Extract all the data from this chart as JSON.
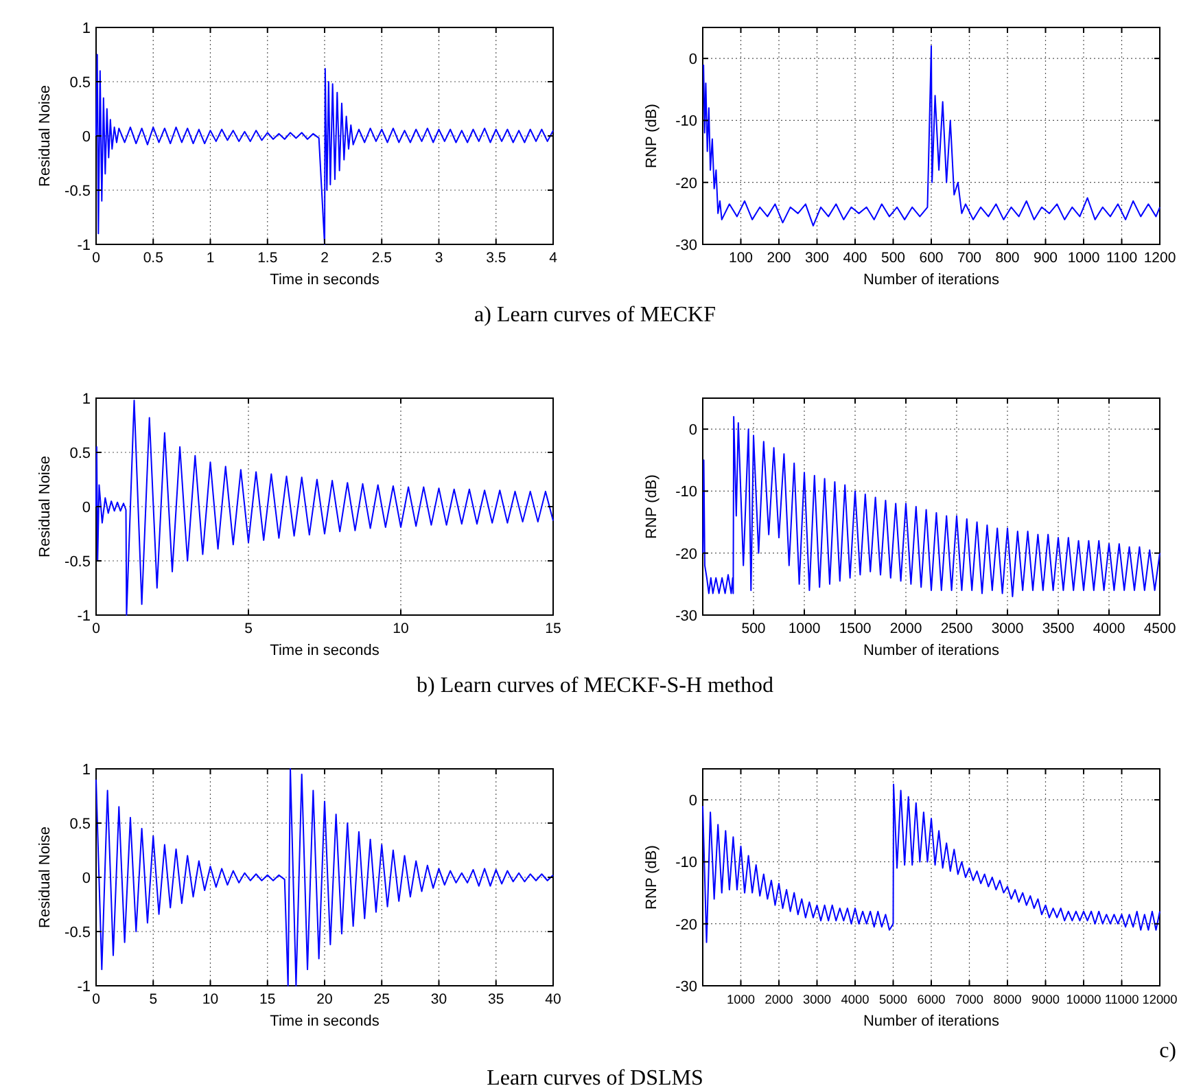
{
  "chart_data": [
    {
      "type": "line",
      "xlabel": "Time in seconds",
      "ylabel": "Residual Noise",
      "xlim": [
        0,
        4
      ],
      "ylim": [
        -1,
        1
      ],
      "xticks": [
        0,
        0.5,
        1,
        1.5,
        2,
        2.5,
        3,
        3.5,
        4
      ],
      "yticks": [
        -1,
        -0.5,
        0,
        0.5,
        1
      ],
      "grid": true,
      "color": "#0000ff",
      "x": [
        0,
        0.01,
        0.02,
        0.035,
        0.05,
        0.065,
        0.08,
        0.095,
        0.11,
        0.125,
        0.14,
        0.16,
        0.18,
        0.2,
        0.25,
        0.3,
        0.35,
        0.4,
        0.45,
        0.5,
        0.55,
        0.6,
        0.65,
        0.7,
        0.75,
        0.8,
        0.85,
        0.9,
        0.95,
        1,
        1.05,
        1.1,
        1.15,
        1.2,
        1.25,
        1.3,
        1.35,
        1.4,
        1.45,
        1.5,
        1.55,
        1.6,
        1.65,
        1.7,
        1.75,
        1.8,
        1.85,
        1.9,
        1.95,
        2,
        2.005,
        2.02,
        2.035,
        2.05,
        2.07,
        2.09,
        2.11,
        2.13,
        2.15,
        2.17,
        2.19,
        2.21,
        2.23,
        2.25,
        2.3,
        2.35,
        2.4,
        2.45,
        2.5,
        2.55,
        2.6,
        2.65,
        2.7,
        2.75,
        2.8,
        2.85,
        2.9,
        2.95,
        3,
        3.05,
        3.1,
        3.15,
        3.2,
        3.25,
        3.3,
        3.35,
        3.4,
        3.45,
        3.5,
        3.55,
        3.6,
        3.65,
        3.7,
        3.75,
        3.8,
        3.85,
        3.9,
        3.95,
        4
      ],
      "values": [
        0,
        0.75,
        -0.9,
        0.6,
        -0.6,
        0.35,
        -0.35,
        0.25,
        -0.2,
        0.15,
        -0.12,
        0.08,
        -0.06,
        0.07,
        -0.06,
        0.08,
        -0.07,
        0.07,
        -0.08,
        0.08,
        -0.06,
        0.07,
        -0.07,
        0.08,
        -0.06,
        0.07,
        -0.07,
        0.06,
        -0.07,
        0.05,
        -0.05,
        0.06,
        -0.04,
        0.05,
        -0.05,
        0.04,
        -0.05,
        0.05,
        -0.04,
        0.03,
        -0.03,
        0.02,
        -0.03,
        0.03,
        -0.02,
        0.03,
        -0.03,
        0.02,
        -0.02,
        -1,
        0.62,
        -0.5,
        0.5,
        -0.45,
        0.48,
        -0.4,
        0.4,
        -0.32,
        0.3,
        -0.22,
        0.18,
        -0.12,
        0.1,
        -0.08,
        0.06,
        -0.06,
        0.07,
        -0.05,
        0.06,
        -0.06,
        0.07,
        -0.06,
        0.05,
        -0.06,
        0.06,
        -0.05,
        0.07,
        -0.06,
        0.06,
        -0.05,
        0.06,
        -0.06,
        0.05,
        -0.06,
        0.06,
        -0.05,
        0.07,
        -0.06,
        0.06,
        -0.05,
        0.06,
        -0.06,
        0.05,
        -0.06,
        0.06,
        -0.05,
        0.06,
        -0.05,
        0.05
      ]
    },
    {
      "type": "line",
      "xlabel": "Number of iterations",
      "ylabel": "RNP (dB)",
      "xlim": [
        0,
        1200
      ],
      "ylim": [
        -30,
        5
      ],
      "xticks": [
        100,
        200,
        300,
        400,
        500,
        600,
        700,
        800,
        900,
        1000,
        1100,
        1200
      ],
      "yticks": [
        -30,
        -20,
        -10,
        0
      ],
      "grid": true,
      "color": "#0000ff",
      "annotations": [
        "a) Learn curves of MECKF"
      ],
      "x": [
        2,
        5,
        8,
        12,
        16,
        20,
        25,
        30,
        35,
        40,
        45,
        50,
        70,
        90,
        110,
        130,
        150,
        170,
        190,
        210,
        230,
        250,
        270,
        290,
        310,
        330,
        350,
        370,
        390,
        410,
        430,
        450,
        470,
        490,
        510,
        530,
        550,
        570,
        590,
        600,
        602,
        610,
        620,
        630,
        640,
        650,
        660,
        670,
        680,
        690,
        710,
        730,
        750,
        770,
        790,
        810,
        830,
        850,
        870,
        890,
        910,
        930,
        950,
        970,
        990,
        1010,
        1030,
        1050,
        1070,
        1090,
        1110,
        1130,
        1150,
        1170,
        1190,
        1200
      ],
      "values": [
        -1,
        -12,
        -4,
        -15,
        -8,
        -18,
        -13,
        -21,
        -18,
        -25,
        -23,
        -26,
        -23.5,
        -25.5,
        -23,
        -26,
        -24,
        -25.5,
        -23.5,
        -26.5,
        -24,
        -25,
        -23.5,
        -27,
        -24,
        -25.5,
        -23.5,
        -26,
        -24,
        -25,
        -24,
        -26,
        -23.5,
        -25.5,
        -24,
        -26,
        -24,
        -25.5,
        -24,
        2,
        -20,
        -6,
        -18,
        -7,
        -20,
        -10,
        -22,
        -20,
        -25,
        -23.5,
        -26,
        -24,
        -25.5,
        -23.5,
        -26,
        -24,
        -25.5,
        -23,
        -26,
        -24,
        -25,
        -23.5,
        -26,
        -24,
        -25.5,
        -22.5,
        -26,
        -24,
        -25.5,
        -23.5,
        -26,
        -23,
        -25.5,
        -23.5,
        -25.5,
        -24
      ]
    },
    {
      "type": "line",
      "xlabel": "Time in seconds",
      "ylabel": "Residual Noise",
      "xlim": [
        0,
        15
      ],
      "ylim": [
        -1,
        1
      ],
      "xticks": [
        0,
        5,
        10,
        15
      ],
      "yticks": [
        -1,
        -0.5,
        0,
        0.5,
        1
      ],
      "grid": true,
      "color": "#0000ff",
      "x": [
        0,
        0.02,
        0.05,
        0.1,
        0.2,
        0.3,
        0.4,
        0.5,
        0.6,
        0.7,
        0.8,
        0.9,
        0.98,
        1,
        1.25,
        1.5,
        1.75,
        2,
        2.25,
        2.5,
        2.75,
        3,
        3.25,
        3.5,
        3.75,
        4,
        4.25,
        4.5,
        4.75,
        5,
        5.25,
        5.5,
        5.75,
        6,
        6.25,
        6.5,
        6.75,
        7,
        7.25,
        7.5,
        7.75,
        8,
        8.25,
        8.5,
        8.75,
        9,
        9.25,
        9.5,
        9.75,
        10,
        10.25,
        10.5,
        10.75,
        11,
        11.25,
        11.5,
        11.75,
        12,
        12.25,
        12.5,
        12.75,
        13,
        13.25,
        13.5,
        13.75,
        14,
        14.25,
        14.5,
        14.75,
        15
      ],
      "values": [
        0,
        0.55,
        -0.5,
        0.2,
        -0.15,
        0.08,
        -0.06,
        0.05,
        -0.04,
        0.04,
        -0.04,
        0.03,
        -0.03,
        -1,
        0.98,
        -0.9,
        0.82,
        -0.75,
        0.68,
        -0.6,
        0.55,
        -0.5,
        0.47,
        -0.44,
        0.41,
        -0.39,
        0.37,
        -0.35,
        0.34,
        -0.33,
        0.32,
        -0.31,
        0.3,
        -0.29,
        0.28,
        -0.27,
        0.27,
        -0.26,
        0.25,
        -0.25,
        0.24,
        -0.23,
        0.22,
        -0.22,
        0.21,
        -0.2,
        0.2,
        -0.19,
        0.19,
        -0.19,
        0.18,
        -0.18,
        0.18,
        -0.17,
        0.17,
        -0.17,
        0.16,
        -0.16,
        0.16,
        -0.16,
        0.15,
        -0.15,
        0.15,
        -0.15,
        0.14,
        -0.14,
        0.14,
        -0.14,
        0.14,
        -0.13
      ]
    },
    {
      "type": "line",
      "xlabel": "Number of iterations",
      "ylabel": "RNP (dB)",
      "xlim": [
        0,
        4500
      ],
      "ylim": [
        -30,
        5
      ],
      "xticks": [
        500,
        1000,
        1500,
        2000,
        2500,
        3000,
        3500,
        4000,
        4500
      ],
      "yticks": [
        -30,
        -20,
        -10,
        0
      ],
      "grid": true,
      "color": "#0000ff",
      "annotations": [
        "b) Learn curves of MECKF-S-H method"
      ],
      "x": [
        2,
        10,
        20,
        40,
        60,
        80,
        100,
        130,
        160,
        190,
        220,
        250,
        280,
        295,
        300,
        305,
        330,
        350,
        400,
        450,
        475,
        500,
        550,
        600,
        650,
        700,
        750,
        800,
        850,
        900,
        950,
        1000,
        1050,
        1100,
        1150,
        1200,
        1250,
        1300,
        1350,
        1400,
        1450,
        1500,
        1550,
        1600,
        1650,
        1700,
        1750,
        1800,
        1850,
        1900,
        1950,
        2000,
        2050,
        2100,
        2150,
        2200,
        2250,
        2300,
        2350,
        2400,
        2450,
        2500,
        2550,
        2600,
        2650,
        2700,
        2750,
        2800,
        2850,
        2900,
        2950,
        3000,
        3050,
        3100,
        3150,
        3200,
        3250,
        3300,
        3350,
        3400,
        3450,
        3500,
        3550,
        3600,
        3650,
        3700,
        3750,
        3800,
        3850,
        3900,
        3950,
        4000,
        4050,
        4100,
        4150,
        4200,
        4250,
        4300,
        4350,
        4400,
        4450,
        4500
      ],
      "values": [
        -20,
        -5,
        -22,
        -24,
        -26.5,
        -24,
        -26.5,
        -24,
        -26.5,
        -24,
        -26.5,
        -23.5,
        -26.5,
        -24,
        -26.5,
        2,
        -14,
        1,
        -22,
        0,
        -26,
        -1,
        -20,
        -2,
        -17,
        -3,
        -17.5,
        -4,
        -22,
        -5.5,
        -25,
        -7,
        -26,
        -7.5,
        -25.5,
        -8,
        -25,
        -8.5,
        -24.5,
        -9,
        -24,
        -10,
        -23.5,
        -10.5,
        -23,
        -11,
        -23.5,
        -11.5,
        -24,
        -12,
        -24.5,
        -12,
        -25,
        -12.5,
        -25.5,
        -13,
        -26,
        -13.5,
        -26,
        -14,
        -26,
        -14,
        -26,
        -14.5,
        -26,
        -15,
        -26.5,
        -15.5,
        -26,
        -16,
        -26.5,
        -16,
        -27,
        -16.5,
        -26,
        -16.5,
        -26,
        -17,
        -26,
        -17,
        -26,
        -17.5,
        -26,
        -17.5,
        -26,
        -18,
        -26,
        -18,
        -26,
        -18,
        -26,
        -18.5,
        -26,
        -18.5,
        -26,
        -19,
        -26,
        -19,
        -26,
        -19.5,
        -26,
        -20
      ]
    },
    {
      "type": "line",
      "xlabel": "Time in seconds",
      "ylabel": "Residual Noise",
      "xlim": [
        0,
        40
      ],
      "ylim": [
        -1,
        1
      ],
      "xticks": [
        0,
        5,
        10,
        15,
        20,
        25,
        30,
        35,
        40
      ],
      "yticks": [
        -1,
        -0.5,
        0,
        0.5,
        1
      ],
      "grid": true,
      "color": "#0000ff",
      "x": [
        0,
        0.5,
        1,
        1.5,
        2,
        2.5,
        3,
        3.5,
        4,
        4.5,
        5,
        5.5,
        6,
        6.5,
        7,
        7.5,
        8,
        8.5,
        9,
        9.5,
        10,
        10.5,
        11,
        11.5,
        12,
        12.5,
        13,
        13.5,
        14,
        14.5,
        15,
        15.5,
        16,
        16.5,
        16.8,
        17,
        17.5,
        18,
        18.5,
        19,
        19.5,
        20,
        20.5,
        21,
        21.5,
        22,
        22.5,
        23,
        23.5,
        24,
        24.5,
        25,
        25.5,
        26,
        26.5,
        27,
        27.5,
        28,
        28.5,
        29,
        29.5,
        30,
        30.5,
        31,
        31.5,
        32,
        32.5,
        33,
        33.5,
        34,
        34.5,
        35,
        35.5,
        36,
        36.5,
        37,
        37.5,
        38,
        38.5,
        39,
        39.5,
        40
      ],
      "values": [
        0.9,
        -0.85,
        0.8,
        -0.72,
        0.65,
        -0.6,
        0.55,
        -0.5,
        0.45,
        -0.42,
        0.38,
        -0.34,
        0.3,
        -0.28,
        0.26,
        -0.24,
        0.2,
        -0.18,
        0.15,
        -0.12,
        0.1,
        -0.09,
        0.08,
        -0.07,
        0.06,
        -0.05,
        0.04,
        -0.03,
        0.03,
        -0.03,
        0.02,
        -0.03,
        0.02,
        -0.02,
        -1,
        1,
        -1,
        0.95,
        -0.85,
        0.8,
        -0.75,
        0.7,
        -0.62,
        0.58,
        -0.52,
        0.5,
        -0.45,
        0.42,
        -0.38,
        0.35,
        -0.32,
        0.3,
        -0.27,
        0.25,
        -0.22,
        0.2,
        -0.18,
        0.15,
        -0.13,
        0.11,
        -0.1,
        0.08,
        -0.07,
        0.06,
        -0.05,
        0.04,
        -0.05,
        0.07,
        -0.08,
        0.08,
        -0.08,
        0.07,
        -0.06,
        0.06,
        -0.04,
        0.04,
        -0.04,
        0.03,
        -0.03,
        0.03,
        -0.03,
        0.02
      ]
    },
    {
      "type": "line",
      "xlabel": "Number of iterations",
      "ylabel": "RNP (dB)",
      "xlim": [
        0,
        12000
      ],
      "ylim": [
        -30,
        5
      ],
      "xticks": [
        1000,
        2000,
        3000,
        4000,
        5000,
        6000,
        7000,
        8000,
        9000,
        10000,
        11000,
        12000
      ],
      "yticks": [
        -30,
        -20,
        -10,
        0
      ],
      "grid": true,
      "color": "#0000ff",
      "annotations": [
        "c)",
        "Learn curves of DSLMS"
      ],
      "x": [
        0,
        100,
        200,
        300,
        400,
        500,
        600,
        700,
        800,
        900,
        1000,
        1100,
        1200,
        1300,
        1400,
        1500,
        1600,
        1700,
        1800,
        1900,
        2000,
        2100,
        2200,
        2300,
        2400,
        2500,
        2600,
        2700,
        2800,
        2900,
        3000,
        3100,
        3200,
        3300,
        3400,
        3500,
        3600,
        3700,
        3800,
        3900,
        4000,
        4100,
        4200,
        4300,
        4400,
        4500,
        4600,
        4700,
        4800,
        4900,
        5000,
        5010,
        5100,
        5200,
        5300,
        5400,
        5500,
        5600,
        5700,
        5800,
        5900,
        6000,
        6100,
        6200,
        6300,
        6400,
        6500,
        6600,
        6700,
        6800,
        6900,
        7000,
        7100,
        7200,
        7300,
        7400,
        7500,
        7600,
        7700,
        7800,
        7900,
        8000,
        8100,
        8200,
        8300,
        8400,
        8500,
        8600,
        8700,
        8800,
        8900,
        9000,
        9100,
        9200,
        9300,
        9400,
        9500,
        9600,
        9700,
        9800,
        9900,
        10000,
        10100,
        10200,
        10300,
        10400,
        10500,
        10600,
        10700,
        10800,
        10900,
        11000,
        11100,
        11200,
        11300,
        11400,
        11500,
        11600,
        11700,
        11800,
        11900,
        12000
      ],
      "values": [
        -1,
        -23,
        -2,
        -16,
        -4,
        -15,
        -5,
        -14.5,
        -6,
        -14.5,
        -7.5,
        -15,
        -9,
        -15,
        -10.5,
        -15.5,
        -12,
        -16,
        -13,
        -17,
        -13.5,
        -17.5,
        -14.5,
        -18,
        -15,
        -18.5,
        -16,
        -19,
        -16.5,
        -19,
        -17,
        -19.5,
        -17,
        -19.5,
        -17,
        -19.5,
        -17.5,
        -19.5,
        -17.5,
        -20,
        -17.5,
        -20,
        -18,
        -20,
        -18,
        -20.5,
        -18,
        -20.5,
        -18.5,
        -21,
        -20,
        2.5,
        -11,
        1.5,
        -10.5,
        0.5,
        -10.5,
        -0.5,
        -10,
        -2,
        -10,
        -3,
        -10.5,
        -5,
        -11,
        -7,
        -11.5,
        -8,
        -12,
        -10,
        -12.5,
        -11,
        -13,
        -11.5,
        -13.5,
        -12,
        -14,
        -12.5,
        -14.5,
        -13,
        -15,
        -14,
        -16,
        -14.5,
        -16.5,
        -15,
        -17,
        -15.5,
        -17.5,
        -16,
        -18.5,
        -17,
        -19,
        -17.5,
        -19,
        -17.5,
        -19.5,
        -18,
        -19.5,
        -18,
        -19.5,
        -18,
        -19.5,
        -18,
        -20,
        -18,
        -20,
        -18.5,
        -20,
        -18.5,
        -20,
        -18.5,
        -20.5,
        -18.5,
        -20.5,
        -18,
        -21,
        -18.5,
        -21,
        -18,
        -21,
        -18
      ]
    }
  ]
}
